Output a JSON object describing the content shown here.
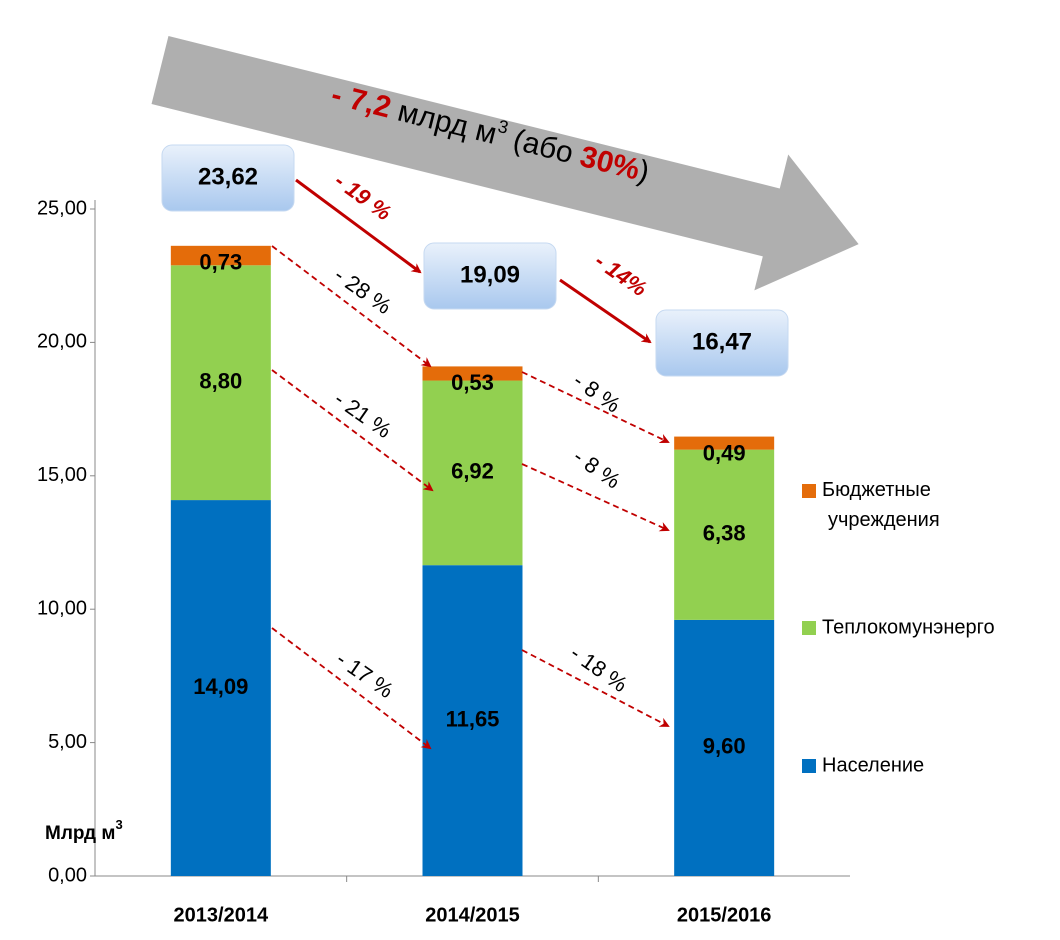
{
  "chart_data": {
    "type": "stacked_bar",
    "y_label": {
      "text": "Млрд м",
      "sup": "3"
    },
    "categories": [
      "2013/2014",
      "2014/2015",
      "2015/2016"
    ],
    "series": [
      {
        "name": "Население",
        "color": "#0070c0",
        "values": [
          14.09,
          11.65,
          9.6
        ],
        "value_labels": [
          "14,09",
          "11,65",
          "9,60"
        ]
      },
      {
        "name": "Теплокомунэнерго",
        "color": "#92d050",
        "values": [
          8.8,
          6.92,
          6.38
        ],
        "value_labels": [
          "8,80",
          "6,92",
          "6,38"
        ]
      },
      {
        "name": "Бюджетные учреждения",
        "color": "#e46c0a",
        "values": [
          0.73,
          0.53,
          0.49
        ],
        "value_labels": [
          "0,73",
          "0,53",
          "0,49"
        ]
      }
    ],
    "totals": {
      "values": [
        23.62,
        19.09,
        16.47
      ],
      "value_labels": [
        "23,62",
        "19,09",
        "16,47"
      ]
    },
    "ylim": [
      0,
      25
    ],
    "yticks": [
      {
        "value": 0,
        "label": "0,00"
      },
      {
        "value": 5,
        "label": "5,00"
      },
      {
        "value": 10,
        "label": "10,00"
      },
      {
        "value": 15,
        "label": "15,00"
      },
      {
        "value": 20,
        "label": "20,00"
      },
      {
        "value": 25,
        "label": "25,00"
      }
    ],
    "total_changes": [
      "- 19 %",
      "- 14%"
    ],
    "segment_changes": [
      "- 28 %",
      "- 21 %",
      "- 17 %",
      "- 8 %",
      "- 8 %",
      "- 18 %"
    ],
    "arrow_text": {
      "amount": "- 7,2",
      "unit": " млрд м",
      "sup": "3",
      "open": " (або ",
      "share": "30%",
      "close": ")"
    }
  }
}
